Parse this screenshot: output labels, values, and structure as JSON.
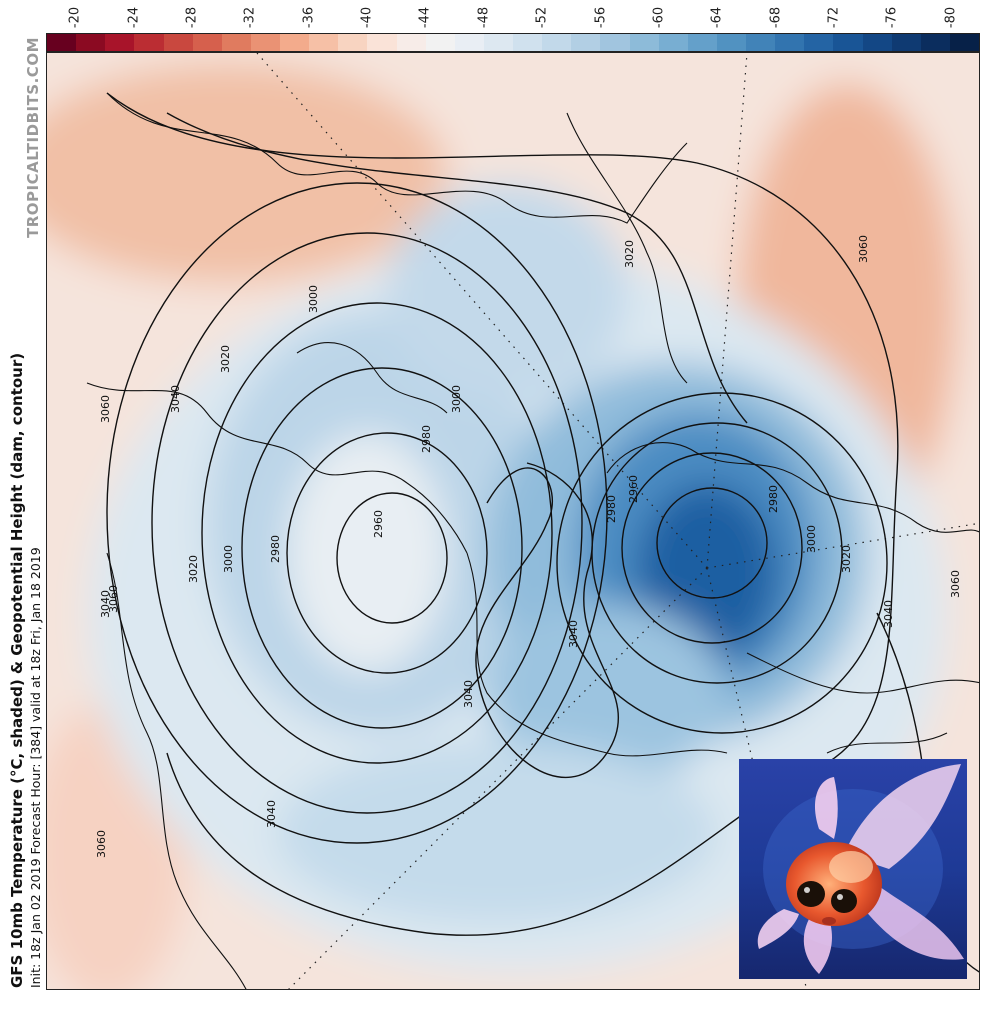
{
  "colorbar": {
    "ticks": [
      "-20",
      "-24",
      "-28",
      "-32",
      "-36",
      "-40",
      "-44",
      "-48",
      "-52",
      "-56",
      "-60",
      "-64",
      "-68",
      "-72",
      "-76",
      "-80"
    ],
    "colors": [
      "#67001f",
      "#8b0a22",
      "#a8142a",
      "#bb2d33",
      "#c9483f",
      "#d6604d",
      "#e07b5f",
      "#ea9274",
      "#f3ab8c",
      "#f6c0a6",
      "#f8d4c1",
      "#fae3d8",
      "#f7ece8",
      "#f2f2f2",
      "#e9eef4",
      "#dde8f1",
      "#d0e1ee",
      "#c2d9ea",
      "#b2cfe4",
      "#a1c5df",
      "#8dbbd9",
      "#78aed2",
      "#64a0ca",
      "#5192c1",
      "#4183b8",
      "#3274af",
      "#2464a4",
      "#195596",
      "#134785",
      "#0f3a72",
      "#0b2d5e",
      "#072148"
    ]
  },
  "labels": {
    "brand": "TROPICALTIDBITS.COM",
    "title": "GFS 10mb Temperature (°C, shaded) & Geopotential Height (dam, contour)",
    "init_line": "Init: 18z Jan 02 2019   Forecast Hour: [384]   valid at 18z Fri, Jan 18 2019"
  },
  "map": {
    "contour_labels": [
      "3060",
      "3040",
      "3020",
      "3000",
      "2980",
      "2960",
      "3000",
      "3020",
      "3040",
      "3060",
      "3020",
      "3060",
      "3000",
      "2980",
      "2980",
      "2960",
      "2980",
      "3000",
      "3020",
      "3040",
      "3060",
      "3040",
      "3040",
      "3040",
      "3060"
    ]
  },
  "inset_photo": {
    "subject": "goldfish"
  }
}
